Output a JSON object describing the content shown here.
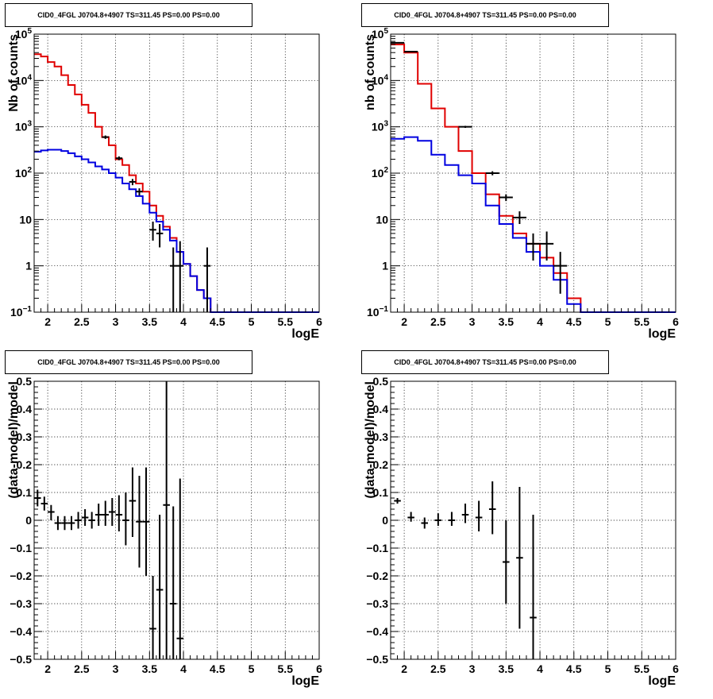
{
  "chart_data": [
    {
      "type": "line",
      "title": "CID0_4FGL J0704.8+4907 TS=311.45 PS=0.00 PS=0.00",
      "xlabel": "logE",
      "ylabel": "Nb of counts",
      "log_y": true,
      "xlim": [
        1.8,
        6.0
      ],
      "ylim": [
        0.1,
        100000
      ],
      "grid": true,
      "x_ticks": [
        2,
        2.5,
        3,
        3.5,
        4,
        4.5,
        5,
        5.5,
        6
      ],
      "x_tick_labels": [
        "2",
        "2.5",
        "3",
        "3.5",
        "4",
        "4.5",
        "5",
        "5.5",
        "6"
      ],
      "y_ticks": [
        0.1,
        1,
        10,
        100,
        1000,
        10000,
        100000
      ],
      "y_tick_labels": [
        "10^-1",
        "1",
        "10",
        "10^2",
        "10^3",
        "10^4",
        "10^5"
      ],
      "bin_edges": [
        1.8,
        1.9,
        2.0,
        2.1,
        2.2,
        2.3,
        2.4,
        2.5,
        2.6,
        2.7,
        2.8,
        2.9,
        3.0,
        3.1,
        3.2,
        3.3,
        3.4,
        3.5,
        3.6,
        3.7,
        3.8,
        3.9,
        4.0,
        4.1,
        4.2,
        4.3,
        4.4,
        4.5,
        4.6,
        4.7,
        4.8,
        4.9,
        5.0,
        5.1,
        5.2,
        5.3,
        5.4,
        5.5,
        5.6,
        5.7,
        5.8,
        5.9,
        6.0
      ],
      "series": [
        {
          "color": "#e00000",
          "style": "step",
          "values": [
            37000,
            33000,
            25000,
            20000,
            13000,
            8000,
            5000,
            3000,
            2000,
            1000,
            600,
            400,
            200,
            150,
            90,
            60,
            40,
            20,
            12,
            7,
            4,
            2,
            1.1,
            0.6,
            0.3,
            0.2,
            0.1,
            0.1,
            0.1,
            0.1,
            0.1,
            0.1,
            0.1,
            0.1,
            0.1,
            0.1,
            0.1,
            0.1,
            0.1,
            0.1,
            0.1,
            0.1
          ]
        },
        {
          "color": "#0000e0",
          "style": "step",
          "values": [
            290,
            310,
            320,
            320,
            300,
            270,
            230,
            200,
            170,
            140,
            120,
            100,
            80,
            60,
            45,
            32,
            22,
            14,
            9,
            6,
            3.5,
            2,
            1.1,
            0.6,
            0.3,
            0.2,
            0.1,
            0.1,
            0.1,
            0.1,
            0.1,
            0.1,
            0.1,
            0.1,
            0.1,
            0.1,
            0.1,
            0.1,
            0.1,
            0.1,
            0.1,
            0.1
          ]
        },
        {
          "color": "#000000",
          "style": "errorbar",
          "points": [
            {
              "x": 2.85,
              "y": 600,
              "lo": 550,
              "hi": 650
            },
            {
              "x": 3.05,
              "y": 210,
              "lo": 190,
              "hi": 230
            },
            {
              "x": 3.25,
              "y": 65,
              "lo": 55,
              "hi": 75
            },
            {
              "x": 3.35,
              "y": 40,
              "lo": 33,
              "hi": 47
            },
            {
              "x": 3.55,
              "y": 6,
              "lo": 3.5,
              "hi": 9
            },
            {
              "x": 3.65,
              "y": 5,
              "lo": 2.5,
              "hi": 8
            },
            {
              "x": 3.85,
              "y": 1,
              "lo": 0.1,
              "hi": 2.5
            },
            {
              "x": 3.95,
              "y": 1,
              "lo": 0.1,
              "hi": 3.4
            },
            {
              "x": 4.35,
              "y": 1,
              "lo": 0.1,
              "hi": 2.5
            }
          ]
        }
      ]
    },
    {
      "type": "line",
      "title": "CID0_4FGL J0704.8+4907 TS=311.45 PS=0.00 PS=0.00",
      "xlabel": "logE",
      "ylabel": "nb of counts",
      "log_y": true,
      "xlim": [
        1.8,
        6.0
      ],
      "ylim": [
        0.1,
        100000
      ],
      "grid": true,
      "x_ticks": [
        2,
        2.5,
        3,
        3.5,
        4,
        4.5,
        5,
        5.5,
        6
      ],
      "x_tick_labels": [
        "2",
        "2.5",
        "3",
        "3.5",
        "4",
        "4.5",
        "5",
        "5.5",
        "6"
      ],
      "y_ticks": [
        0.1,
        1,
        10,
        100,
        1000,
        10000,
        100000
      ],
      "y_tick_labels": [
        "10^-1",
        "1",
        "10",
        "10^2",
        "10^3",
        "10^4",
        "10^5"
      ],
      "bin_edges": [
        1.8,
        2.0,
        2.2,
        2.4,
        2.6,
        2.8,
        3.0,
        3.2,
        3.4,
        3.6,
        3.8,
        4.0,
        4.2,
        4.4,
        4.6,
        4.8,
        5.0,
        5.2,
        5.4,
        5.6,
        5.8,
        6.0
      ],
      "series": [
        {
          "color": "#e00000",
          "style": "step",
          "values": [
            60000,
            40000,
            8500,
            2500,
            1000,
            300,
            100,
            35,
            12,
            5,
            3,
            1.5,
            0.7,
            0.2,
            0.1,
            0.1,
            0.1,
            0.1,
            0.1,
            0.1,
            0.1
          ]
        },
        {
          "color": "#0000e0",
          "style": "step",
          "values": [
            550,
            600,
            500,
            250,
            150,
            90,
            60,
            20,
            8,
            4,
            2,
            1,
            0.5,
            0.15,
            0.1,
            0.1,
            0.1,
            0.1,
            0.1,
            0.1,
            0.1
          ]
        },
        {
          "color": "#000000",
          "style": "errorbar",
          "points": [
            {
              "x": 1.9,
              "y": 65000,
              "lo": 64000,
              "hi": 66000
            },
            {
              "x": 2.1,
              "y": 42000,
              "lo": 41000,
              "hi": 43000
            },
            {
              "x": 2.9,
              "y": 1000,
              "lo": 950,
              "hi": 1050
            },
            {
              "x": 3.3,
              "y": 100,
              "lo": 90,
              "hi": 110
            },
            {
              "x": 3.5,
              "y": 30,
              "lo": 25,
              "hi": 35
            },
            {
              "x": 3.7,
              "y": 11,
              "lo": 8,
              "hi": 15
            },
            {
              "x": 3.9,
              "y": 3,
              "lo": 1.3,
              "hi": 5
            },
            {
              "x": 4.1,
              "y": 3,
              "lo": 1.3,
              "hi": 5.5
            },
            {
              "x": 4.3,
              "y": 1,
              "lo": 0.25,
              "hi": 2
            }
          ]
        }
      ]
    },
    {
      "type": "scatter",
      "title": "CID0_4FGL J0704.8+4907 TS=311.45 PS=0.00 PS=0.00",
      "xlabel": "logE",
      "ylabel": "(data-model)/model",
      "log_y": false,
      "xlim": [
        1.8,
        6.0
      ],
      "ylim": [
        -0.5,
        0.5
      ],
      "grid": true,
      "x_ticks": [
        2,
        2.5,
        3,
        3.5,
        4,
        4.5,
        5,
        5.5,
        6
      ],
      "x_tick_labels": [
        "2",
        "2.5",
        "3",
        "3.5",
        "4",
        "4.5",
        "5",
        "5.5",
        "6"
      ],
      "y_ticks": [
        -0.5,
        -0.4,
        -0.3,
        -0.2,
        -0.1,
        0,
        0.1,
        0.2,
        0.3,
        0.4,
        0.5
      ],
      "y_tick_labels": [
        "−0.5",
        "−0.4",
        "−0.3",
        "−0.2",
        "−0.1",
        "0",
        "0.1",
        "0.2",
        "0.3",
        "0.4",
        "0.5"
      ],
      "series": [
        {
          "color": "#000000",
          "style": "errorbar",
          "points": [
            {
              "x": 1.85,
              "y": 0.08,
              "lo": 0.05,
              "hi": 0.11
            },
            {
              "x": 1.95,
              "y": 0.06,
              "lo": 0.035,
              "hi": 0.085
            },
            {
              "x": 2.05,
              "y": 0.03,
              "lo": 0.0,
              "hi": 0.055
            },
            {
              "x": 2.15,
              "y": -0.01,
              "lo": -0.035,
              "hi": 0.015
            },
            {
              "x": 2.25,
              "y": -0.01,
              "lo": -0.035,
              "hi": 0.015
            },
            {
              "x": 2.35,
              "y": -0.01,
              "lo": -0.035,
              "hi": 0.015
            },
            {
              "x": 2.45,
              "y": 0.0,
              "lo": -0.03,
              "hi": 0.03
            },
            {
              "x": 2.55,
              "y": 0.01,
              "lo": -0.02,
              "hi": 0.04
            },
            {
              "x": 2.65,
              "y": 0.0,
              "lo": -0.03,
              "hi": 0.03
            },
            {
              "x": 2.75,
              "y": 0.02,
              "lo": -0.02,
              "hi": 0.06
            },
            {
              "x": 2.85,
              "y": 0.02,
              "lo": -0.02,
              "hi": 0.07
            },
            {
              "x": 2.95,
              "y": 0.03,
              "lo": -0.02,
              "hi": 0.08
            },
            {
              "x": 3.05,
              "y": 0.02,
              "lo": -0.04,
              "hi": 0.09
            },
            {
              "x": 3.15,
              "y": 0.0,
              "lo": -0.09,
              "hi": 0.1
            },
            {
              "x": 3.25,
              "y": 0.07,
              "lo": -0.06,
              "hi": 0.19
            },
            {
              "x": 3.35,
              "y": -0.005,
              "lo": -0.17,
              "hi": 0.16
            },
            {
              "x": 3.45,
              "y": -0.005,
              "lo": -0.2,
              "hi": 0.19
            },
            {
              "x": 3.55,
              "y": -0.39,
              "lo": -0.5,
              "hi": -0.2
            },
            {
              "x": 3.65,
              "y": -0.25,
              "lo": -0.5,
              "hi": 0.02
            },
            {
              "x": 3.75,
              "y": 0.055,
              "lo": -0.5,
              "hi": 0.5
            },
            {
              "x": 3.85,
              "y": -0.3,
              "lo": -0.5,
              "hi": 0.05
            },
            {
              "x": 3.95,
              "y": -0.425,
              "lo": -0.5,
              "hi": 0.15
            }
          ]
        }
      ]
    },
    {
      "type": "scatter",
      "title": "CID0_4FGL J0704.8+4907 TS=311.45 PS=0.00 PS=0.00",
      "xlabel": "logE",
      "ylabel": "(data-model)/model",
      "log_y": false,
      "xlim": [
        1.8,
        6.0
      ],
      "ylim": [
        -0.5,
        0.5
      ],
      "grid": true,
      "x_ticks": [
        2,
        2.5,
        3,
        3.5,
        4,
        4.5,
        5,
        5.5,
        6
      ],
      "x_tick_labels": [
        "2",
        "2.5",
        "3",
        "3.5",
        "4",
        "4.5",
        "5",
        "5.5",
        "6"
      ],
      "y_ticks": [
        -0.5,
        -0.4,
        -0.3,
        -0.2,
        -0.1,
        0,
        0.1,
        0.2,
        0.3,
        0.4,
        0.5
      ],
      "y_tick_labels": [
        "−0.5",
        "−0.4",
        "−0.3",
        "−0.2",
        "−0.1",
        "0",
        "0.1",
        "0.2",
        "0.3",
        "0.4",
        "0.5"
      ],
      "series": [
        {
          "color": "#000000",
          "style": "errorbar",
          "points": [
            {
              "x": 1.9,
              "y": 0.07,
              "lo": 0.06,
              "hi": 0.08
            },
            {
              "x": 2.1,
              "y": 0.01,
              "lo": -0.005,
              "hi": 0.03
            },
            {
              "x": 2.3,
              "y": -0.01,
              "lo": -0.03,
              "hi": 0.01
            },
            {
              "x": 2.5,
              "y": 0.0,
              "lo": -0.02,
              "hi": 0.025
            },
            {
              "x": 2.7,
              "y": 0.0,
              "lo": -0.02,
              "hi": 0.03
            },
            {
              "x": 2.9,
              "y": 0.02,
              "lo": -0.01,
              "hi": 0.06
            },
            {
              "x": 3.1,
              "y": 0.01,
              "lo": -0.04,
              "hi": 0.07
            },
            {
              "x": 3.3,
              "y": 0.04,
              "lo": -0.05,
              "hi": 0.14
            },
            {
              "x": 3.5,
              "y": -0.15,
              "lo": -0.3,
              "hi": 0.0
            },
            {
              "x": 3.7,
              "y": -0.135,
              "lo": -0.39,
              "hi": 0.12
            },
            {
              "x": 3.9,
              "y": -0.35,
              "lo": -0.5,
              "hi": 0.02
            }
          ]
        }
      ]
    }
  ]
}
